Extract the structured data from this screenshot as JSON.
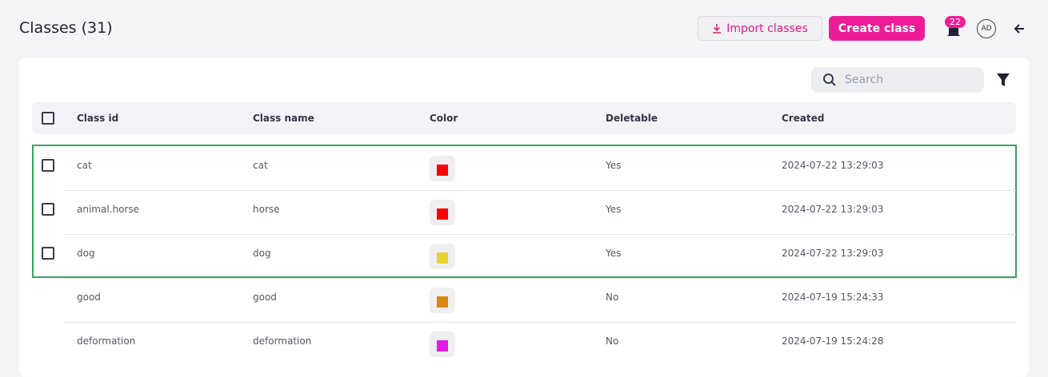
{
  "header": {
    "title": "Classes (31)",
    "import_button": "Import classes",
    "create_button": "Create class",
    "notification_count": "22",
    "avatar": "AD"
  },
  "search": {
    "placeholder": "Search"
  },
  "table": {
    "columns": [
      "Class id",
      "Class name",
      "Color",
      "Deletable",
      "Created"
    ],
    "rows": [
      {
        "class_id": "cat",
        "class_name": "cat",
        "color": "#ff0000",
        "deletable": "Yes",
        "created": "2024-07-22 13:29:03"
      },
      {
        "class_id": "animal.horse",
        "class_name": "horse",
        "color": "#ff0000",
        "deletable": "Yes",
        "created": "2024-07-22 13:29:03"
      },
      {
        "class_id": "dog",
        "class_name": "dog",
        "color": "#e8d230",
        "deletable": "Yes",
        "created": "2024-07-22 13:29:03"
      },
      {
        "class_id": "good",
        "class_name": "good",
        "color": "#d98a0c",
        "deletable": "No",
        "created": "2024-07-19 15:24:33"
      },
      {
        "class_id": "deformation",
        "class_name": "deformation",
        "color": "#e619e6",
        "deletable": "No",
        "created": "2024-07-19 15:24:28"
      }
    ]
  }
}
